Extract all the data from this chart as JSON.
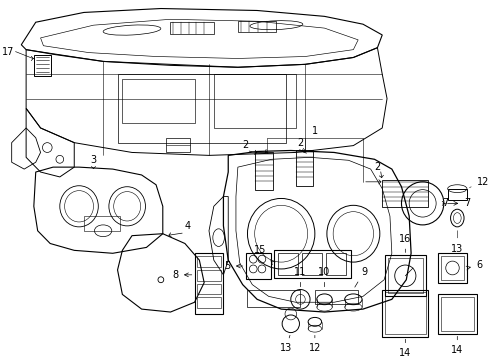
{
  "bg_color": "#ffffff",
  "line_color": "#000000",
  "fs": 7.0
}
